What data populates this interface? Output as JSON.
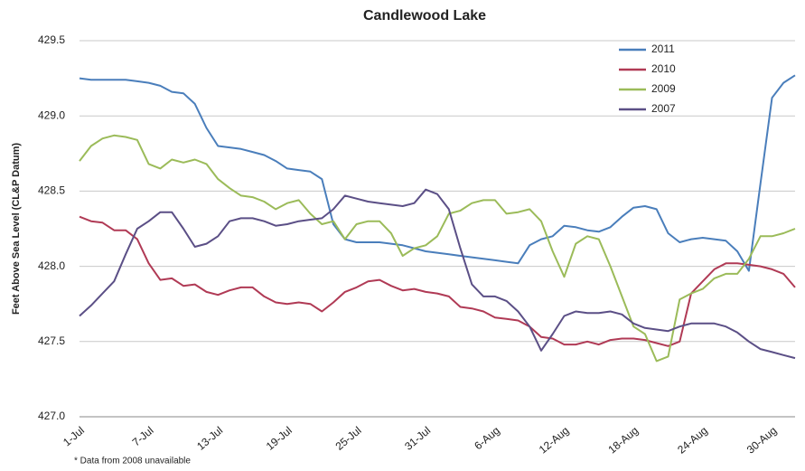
{
  "chart_data": {
    "type": "line",
    "title": "Candlewood Lake",
    "y_label": "Feet Above Sea Level (CL&P Datum)",
    "footnote": "* Data from 2008 unavailable",
    "categories": [
      "1-Jul",
      null,
      null,
      null,
      null,
      null,
      "7-Jul",
      null,
      null,
      null,
      null,
      null,
      "13-Jul",
      null,
      null,
      null,
      null,
      null,
      "19-Jul",
      null,
      null,
      null,
      null,
      null,
      "25-Jul",
      null,
      null,
      null,
      null,
      null,
      "31-Jul",
      null,
      null,
      null,
      null,
      null,
      "6-Aug",
      null,
      null,
      null,
      null,
      null,
      "12-Aug",
      null,
      null,
      null,
      null,
      null,
      "18-Aug",
      null,
      null,
      null,
      null,
      null,
      "24-Aug",
      null,
      null,
      null,
      null,
      null,
      "30-Aug",
      null,
      null
    ],
    "ylim": [
      427.0,
      429.5
    ],
    "yticks": [
      {
        "value": 427.0,
        "label": "427.0"
      },
      427.5,
      {
        "value": 428.0,
        "label": "428.0"
      },
      428.5,
      {
        "value": 429.0,
        "label": "429.0"
      },
      429.5
    ],
    "grid": true,
    "legend": "upper right",
    "series": [
      {
        "name": "2011",
        "color": "#4a7ebb",
        "values": [
          429.25,
          429.24,
          429.24,
          429.24,
          429.24,
          429.23,
          429.22,
          429.2,
          429.16,
          429.15,
          429.08,
          428.92,
          428.8,
          428.79,
          428.78,
          428.76,
          428.74,
          428.7,
          428.65,
          428.64,
          428.63,
          428.58,
          428.28,
          428.18,
          428.16,
          428.16,
          428.16,
          428.15,
          428.14,
          428.12,
          428.1,
          428.09,
          428.08,
          428.07,
          428.06,
          428.05,
          428.04,
          428.03,
          428.02,
          428.14,
          428.18,
          428.2,
          428.27,
          428.26,
          428.24,
          428.23,
          428.26,
          428.33,
          428.39,
          428.4,
          428.38,
          428.22,
          428.16,
          428.18,
          428.19,
          428.18,
          428.17,
          428.1,
          427.97,
          428.55,
          429.12,
          429.22,
          429.27
        ]
      },
      {
        "name": "2010",
        "color": "#b03a55",
        "values": [
          428.33,
          428.3,
          428.29,
          428.24,
          428.24,
          428.18,
          428.02,
          427.91,
          427.92,
          427.87,
          427.88,
          427.83,
          427.81,
          427.84,
          427.86,
          427.86,
          427.8,
          427.76,
          427.75,
          427.76,
          427.75,
          427.7,
          427.76,
          427.83,
          427.86,
          427.9,
          427.91,
          427.87,
          427.84,
          427.85,
          427.83,
          427.82,
          427.8,
          427.73,
          427.72,
          427.7,
          427.66,
          427.65,
          427.64,
          427.6,
          427.53,
          427.52,
          427.48,
          427.48,
          427.5,
          427.48,
          427.51,
          427.52,
          427.52,
          427.51,
          427.49,
          427.47,
          427.5,
          427.82,
          427.9,
          427.98,
          428.02,
          428.02,
          428.01,
          428.0,
          427.98,
          427.95,
          427.86
        ]
      },
      {
        "name": "2009",
        "color": "#9bbb59",
        "values": [
          428.7,
          428.8,
          428.85,
          428.87,
          428.86,
          428.84,
          428.68,
          428.65,
          428.71,
          428.69,
          428.71,
          428.68,
          428.58,
          428.52,
          428.47,
          428.46,
          428.43,
          428.38,
          428.42,
          428.44,
          428.35,
          428.28,
          428.3,
          428.18,
          428.28,
          428.3,
          428.3,
          428.22,
          428.07,
          428.12,
          428.14,
          428.2,
          428.35,
          428.37,
          428.42,
          428.44,
          428.44,
          428.35,
          428.36,
          428.38,
          428.3,
          428.1,
          427.93,
          428.15,
          428.2,
          428.18,
          428.0,
          427.8,
          427.6,
          427.55,
          427.37,
          427.4,
          427.78,
          427.82,
          427.85,
          427.92,
          427.95,
          427.95,
          428.05,
          428.2,
          428.2,
          428.22,
          428.25
        ]
      },
      {
        "name": "2007",
        "color": "#5b4f86",
        "values": [
          427.67,
          427.74,
          427.82,
          427.9,
          428.08,
          428.25,
          428.3,
          428.36,
          428.36,
          428.25,
          428.13,
          428.15,
          428.2,
          428.3,
          428.32,
          428.32,
          428.3,
          428.27,
          428.28,
          428.3,
          428.31,
          428.32,
          428.38,
          428.47,
          428.45,
          428.43,
          428.42,
          428.41,
          428.4,
          428.42,
          428.51,
          428.48,
          428.38,
          428.12,
          427.88,
          427.8,
          427.8,
          427.77,
          427.7,
          427.6,
          427.44,
          427.55,
          427.67,
          427.7,
          427.69,
          427.69,
          427.7,
          427.68,
          427.62,
          427.59,
          427.58,
          427.57,
          427.6,
          427.62,
          427.62,
          427.62,
          427.6,
          427.56,
          427.5,
          427.45,
          427.43,
          427.41,
          427.39
        ]
      }
    ]
  }
}
